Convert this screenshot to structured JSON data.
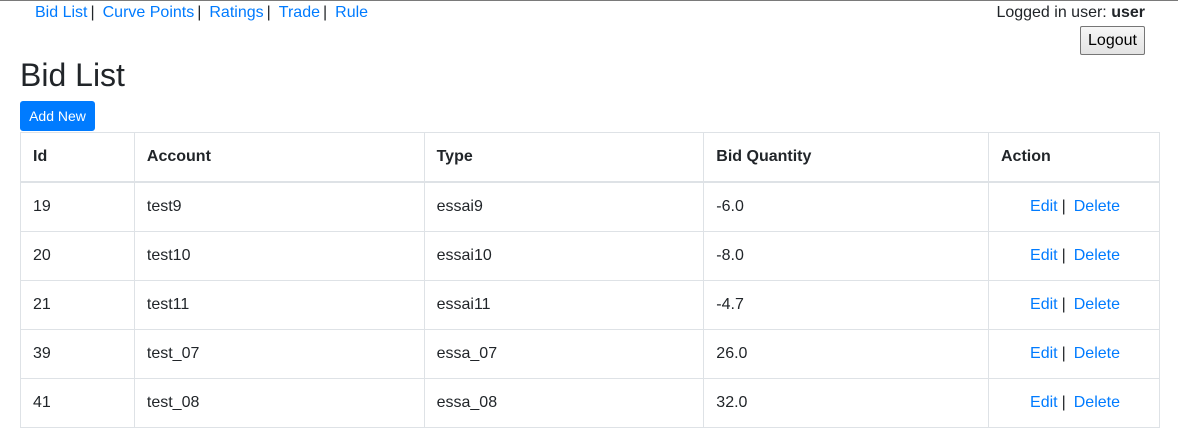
{
  "nav": {
    "items": [
      {
        "label": "Bid List"
      },
      {
        "label": "Curve Points"
      },
      {
        "label": "Ratings"
      },
      {
        "label": "Trade"
      },
      {
        "label": "Rule"
      }
    ],
    "separator": "|"
  },
  "user": {
    "prefix": "Logged in user:",
    "name": "user",
    "logout_label": "Logout"
  },
  "page": {
    "title": "Bid List",
    "add_label": "Add New"
  },
  "table": {
    "headers": {
      "id": "Id",
      "account": "Account",
      "type": "Type",
      "quantity": "Bid Quantity",
      "action": "Action"
    },
    "rows": [
      {
        "id": "19",
        "account": "test9",
        "type": "essai9",
        "quantity": "-6.0"
      },
      {
        "id": "20",
        "account": "test10",
        "type": "essai10",
        "quantity": "-8.0"
      },
      {
        "id": "21",
        "account": "test11",
        "type": "essai11",
        "quantity": "-4.7"
      },
      {
        "id": "39",
        "account": "test_07",
        "type": "essa_07",
        "quantity": "26.0"
      },
      {
        "id": "41",
        "account": "test_08",
        "type": "essa_08",
        "quantity": "32.0"
      }
    ],
    "edit_label": "Edit",
    "delete_label": "Delete",
    "action_separator": "|"
  },
  "colors": {
    "link": "#007bff",
    "primary_button": "#007bff",
    "border": "#dee2e6",
    "text": "#212529"
  }
}
